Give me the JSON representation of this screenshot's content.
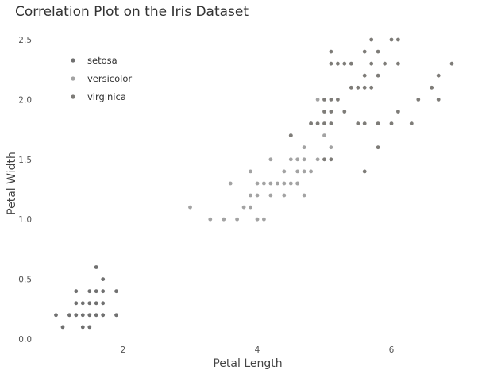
{
  "chart_data": {
    "type": "scatter",
    "title": "Correlation Plot on the Iris Dataset",
    "xlabel": "Petal Length",
    "ylabel": "Petal Width",
    "xlim": [
      0.7,
      7.0
    ],
    "ylim": [
      0.0,
      2.6
    ],
    "x_ticks": [
      2,
      4,
      6
    ],
    "y_ticks": [
      0.0,
      0.5,
      1.0,
      1.5,
      2.0,
      2.5
    ],
    "y_tick_labels": [
      "0.0",
      "0.5",
      "1.0",
      "1.5",
      "2.0",
      "2.5"
    ],
    "grid": false,
    "legend_position": "top-left",
    "series": [
      {
        "name": "setosa",
        "color": "#707070",
        "points": [
          [
            1.0,
            0.2
          ],
          [
            1.1,
            0.1
          ],
          [
            1.2,
            0.2
          ],
          [
            1.3,
            0.2
          ],
          [
            1.3,
            0.3
          ],
          [
            1.3,
            0.4
          ],
          [
            1.4,
            0.2
          ],
          [
            1.4,
            0.3
          ],
          [
            1.4,
            0.1
          ],
          [
            1.5,
            0.2
          ],
          [
            1.5,
            0.4
          ],
          [
            1.5,
            0.1
          ],
          [
            1.5,
            0.3
          ],
          [
            1.6,
            0.2
          ],
          [
            1.6,
            0.4
          ],
          [
            1.6,
            0.6
          ],
          [
            1.6,
            0.3
          ],
          [
            1.7,
            0.2
          ],
          [
            1.7,
            0.5
          ],
          [
            1.7,
            0.4
          ],
          [
            1.7,
            0.3
          ],
          [
            1.9,
            0.2
          ],
          [
            1.9,
            0.4
          ]
        ]
      },
      {
        "name": "versicolor",
        "color": "#a3a3a3",
        "points": [
          [
            3.0,
            1.1
          ],
          [
            3.3,
            1.0
          ],
          [
            3.5,
            1.0
          ],
          [
            3.7,
            1.0
          ],
          [
            3.8,
            1.1
          ],
          [
            3.9,
            1.1
          ],
          [
            3.9,
            1.2
          ],
          [
            3.9,
            1.4
          ],
          [
            3.6,
            1.3
          ],
          [
            4.0,
            1.0
          ],
          [
            4.0,
            1.2
          ],
          [
            4.0,
            1.3
          ],
          [
            4.1,
            1.0
          ],
          [
            4.1,
            1.3
          ],
          [
            4.2,
            1.2
          ],
          [
            4.2,
            1.3
          ],
          [
            4.2,
            1.5
          ],
          [
            4.3,
            1.3
          ],
          [
            4.4,
            1.2
          ],
          [
            4.4,
            1.3
          ],
          [
            4.4,
            1.4
          ],
          [
            4.5,
            1.3
          ],
          [
            4.5,
            1.5
          ],
          [
            4.6,
            1.3
          ],
          [
            4.6,
            1.4
          ],
          [
            4.6,
            1.5
          ],
          [
            4.7,
            1.2
          ],
          [
            4.7,
            1.4
          ],
          [
            4.7,
            1.5
          ],
          [
            4.7,
            1.6
          ],
          [
            4.8,
            1.4
          ],
          [
            4.8,
            1.8
          ],
          [
            4.9,
            1.5
          ],
          [
            5.0,
            1.7
          ],
          [
            5.1,
            1.6
          ],
          [
            4.5,
            1.7
          ],
          [
            4.9,
            2.0
          ],
          [
            4.6,
            1.3
          ]
        ]
      },
      {
        "name": "virginica",
        "color": "#7e7c78",
        "points": [
          [
            4.5,
            1.7
          ],
          [
            4.8,
            1.8
          ],
          [
            4.9,
            1.8
          ],
          [
            5.0,
            1.5
          ],
          [
            5.0,
            1.9
          ],
          [
            5.0,
            2.0
          ],
          [
            5.1,
            1.5
          ],
          [
            5.1,
            1.8
          ],
          [
            5.1,
            1.9
          ],
          [
            5.1,
            2.0
          ],
          [
            5.1,
            2.3
          ],
          [
            5.1,
            2.4
          ],
          [
            5.2,
            2.0
          ],
          [
            5.2,
            2.3
          ],
          [
            5.3,
            1.9
          ],
          [
            5.3,
            2.3
          ],
          [
            5.4,
            2.1
          ],
          [
            5.4,
            2.3
          ],
          [
            5.5,
            1.8
          ],
          [
            5.5,
            2.1
          ],
          [
            5.6,
            1.4
          ],
          [
            5.6,
            1.8
          ],
          [
            5.6,
            2.1
          ],
          [
            5.6,
            2.2
          ],
          [
            5.6,
            2.4
          ],
          [
            5.7,
            2.1
          ],
          [
            5.7,
            2.3
          ],
          [
            5.7,
            2.5
          ],
          [
            5.8,
            1.6
          ],
          [
            5.8,
            1.8
          ],
          [
            5.8,
            2.2
          ],
          [
            5.8,
            2.4
          ],
          [
            6.0,
            1.8
          ],
          [
            6.0,
            2.5
          ],
          [
            6.1,
            1.9
          ],
          [
            6.1,
            2.3
          ],
          [
            6.1,
            2.5
          ],
          [
            6.3,
            1.8
          ],
          [
            6.4,
            2.0
          ],
          [
            6.6,
            2.1
          ],
          [
            6.7,
            2.0
          ],
          [
            6.7,
            2.2
          ],
          [
            6.9,
            2.3
          ],
          [
            5.9,
            2.3
          ],
          [
            5.0,
            1.8
          ]
        ]
      }
    ]
  }
}
